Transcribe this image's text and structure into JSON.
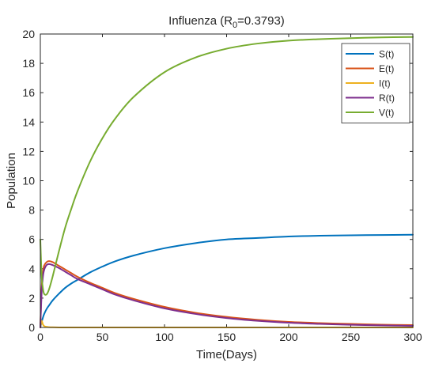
{
  "chart_data": {
    "type": "line",
    "title_main": "Influenza (R",
    "title_sub": "0",
    "title_rest": "=0.3793)",
    "xlabel": "Time(Days)",
    "ylabel": "Population",
    "xlim": [
      0,
      300
    ],
    "ylim": [
      0,
      20
    ],
    "xticks": [
      0,
      50,
      100,
      150,
      200,
      250,
      300
    ],
    "yticks": [
      0,
      2,
      4,
      6,
      8,
      10,
      12,
      14,
      16,
      18,
      20
    ],
    "grid": false,
    "legend_position": "top-right",
    "x": [
      0,
      1,
      2,
      3,
      5,
      7,
      10,
      15,
      20,
      25,
      30,
      40,
      50,
      60,
      75,
      100,
      125,
      150,
      175,
      200,
      225,
      250,
      275,
      300
    ],
    "series": [
      {
        "name": "S(t)",
        "color": "#0072BD",
        "values": [
          0,
          0.35,
          0.65,
          0.9,
          1.25,
          1.5,
          1.85,
          2.3,
          2.7,
          3.0,
          3.25,
          3.75,
          4.15,
          4.5,
          4.9,
          5.4,
          5.75,
          6.0,
          6.1,
          6.2,
          6.25,
          6.28,
          6.3,
          6.32
        ]
      },
      {
        "name": "E(t)",
        "color": "#D95319",
        "values": [
          0,
          2.6,
          3.7,
          4.2,
          4.45,
          4.52,
          4.45,
          4.2,
          3.95,
          3.7,
          3.45,
          3.05,
          2.7,
          2.35,
          1.95,
          1.4,
          1.0,
          0.72,
          0.52,
          0.38,
          0.3,
          0.24,
          0.19,
          0.16
        ]
      },
      {
        "name": "I(t)",
        "color": "#EDB120",
        "values": [
          0,
          0.45,
          0.22,
          0.1,
          0.04,
          0.02,
          0.01,
          0,
          0,
          0,
          0,
          0,
          0,
          0,
          0,
          0,
          0,
          0,
          0,
          0,
          0,
          0,
          0,
          0
        ]
      },
      {
        "name": "R(t)",
        "color": "#7E2F8E",
        "values": [
          0,
          2.3,
          3.4,
          3.9,
          4.25,
          4.32,
          4.25,
          4.05,
          3.8,
          3.55,
          3.3,
          2.95,
          2.6,
          2.25,
          1.85,
          1.3,
          0.92,
          0.64,
          0.45,
          0.32,
          0.24,
          0.18,
          0.14,
          0.11
        ]
      },
      {
        "name": "V(t)",
        "color": "#77AC30",
        "values": [
          6.0,
          3.6,
          2.7,
          2.3,
          2.25,
          2.6,
          3.5,
          5.2,
          6.8,
          8.1,
          9.3,
          11.3,
          12.9,
          14.2,
          15.7,
          17.4,
          18.4,
          19.0,
          19.35,
          19.55,
          19.65,
          19.72,
          19.77,
          19.8
        ]
      }
    ]
  }
}
